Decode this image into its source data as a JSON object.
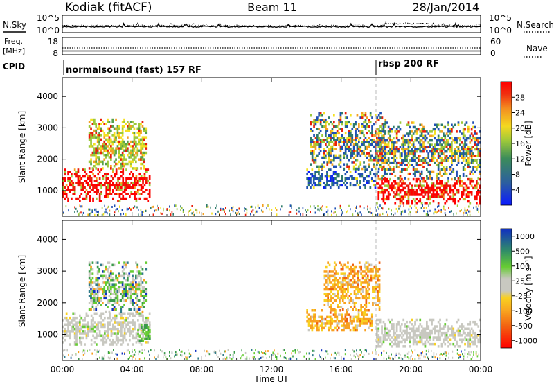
{
  "header": {
    "station": "Kodiak (fitACF)",
    "beam": "Beam 11",
    "date": "28/Jan/2014"
  },
  "top_panels": {
    "nsky_label": "N.Sky",
    "nsearch_label": "N.Search",
    "noise_ticks": [
      "10^5",
      "10^0"
    ],
    "freq_label_1": "Freq.",
    "freq_label_2": "[MHz]",
    "freq_ticks": [
      "18",
      "8"
    ],
    "nave_ticks": [
      "60",
      "0"
    ],
    "nave_label": "Nave",
    "cpid_label": "CPID",
    "cpid_segments": [
      {
        "label": "normalsound (fast) 157 RF",
        "start_hour": 0,
        "end_hour": 18
      },
      {
        "label": "rbsp 200 RF",
        "start_hour": 18,
        "end_hour": 24
      }
    ]
  },
  "chart_data": [
    {
      "type": "heatmap",
      "name": "power",
      "ylabel": "Slant Range [km]",
      "xlabel": "",
      "xlim": [
        0,
        24
      ],
      "ylim": [
        180,
        4600
      ],
      "yticks": [
        "1000",
        "2000",
        "3000",
        "4000"
      ],
      "colorbar": {
        "label": "Power [dB]",
        "ticks": [
          "4",
          "8",
          "12",
          "16",
          "20",
          "24",
          "28"
        ],
        "colors": [
          "#0a1aff",
          "#1f4fb4",
          "#2f7b6a",
          "#55a04a",
          "#9cc83a",
          "#f4e020",
          "#f4a020",
          "#f06010",
          "#e81e0a",
          "#ff0000"
        ]
      },
      "regions": [
        {
          "hours": [
            0.0,
            5.0
          ],
          "range_km": [
            700,
            1700
          ],
          "level": "high"
        },
        {
          "hours": [
            1.5,
            4.8
          ],
          "range_km": [
            1700,
            3300
          ],
          "level": "mid"
        },
        {
          "hours": [
            14.0,
            18.0
          ],
          "range_km": [
            1100,
            1700
          ],
          "level": "low"
        },
        {
          "hours": [
            14.2,
            18.5
          ],
          "range_km": [
            1700,
            3500
          ],
          "level": "mixed"
        },
        {
          "hours": [
            18.0,
            24.0
          ],
          "range_km": [
            600,
            1400
          ],
          "level": "high"
        },
        {
          "hours": [
            18.0,
            24.0
          ],
          "range_km": [
            1400,
            3200
          ],
          "level": "mixed"
        }
      ]
    },
    {
      "type": "heatmap",
      "name": "velocity",
      "ylabel": "Slant Range [km]",
      "xlabel": "Time UT",
      "xlim": [
        0,
        24
      ],
      "ylim": [
        180,
        4600
      ],
      "xticks": [
        "00:00",
        "04:00",
        "08:00",
        "12:00",
        "16:00",
        "20:00",
        "00:00"
      ],
      "yticks": [
        "1000",
        "2000",
        "3000",
        "4000"
      ],
      "colorbar": {
        "label": "Velocity [m s⁻¹]",
        "ticks": [
          "1000",
          "500",
          "100",
          "25",
          "-25",
          "-100",
          "-500",
          "-1000"
        ],
        "colors": [
          "#1030c0",
          "#2f7b8a",
          "#3a9a4a",
          "#66cc33",
          "#c8c8c0",
          "#f8d020",
          "#f8a020",
          "#f06010",
          "#ff0000"
        ]
      },
      "regions": [
        {
          "hours": [
            0.0,
            5.0
          ],
          "range_km": [
            700,
            1700
          ],
          "level": "ground"
        },
        {
          "hours": [
            4.3,
            5.0
          ],
          "range_km": [
            800,
            1400
          ],
          "level": "green"
        },
        {
          "hours": [
            1.5,
            4.8
          ],
          "range_km": [
            1700,
            3300
          ],
          "level": "mixed"
        },
        {
          "hours": [
            14.0,
            17.8
          ],
          "range_km": [
            1100,
            1800
          ],
          "level": "orange"
        },
        {
          "hours": [
            15.0,
            18.2
          ],
          "range_km": [
            1800,
            3300
          ],
          "level": "orange"
        },
        {
          "hours": [
            18.0,
            24.0
          ],
          "range_km": [
            600,
            1500
          ],
          "level": "ground"
        }
      ]
    }
  ]
}
